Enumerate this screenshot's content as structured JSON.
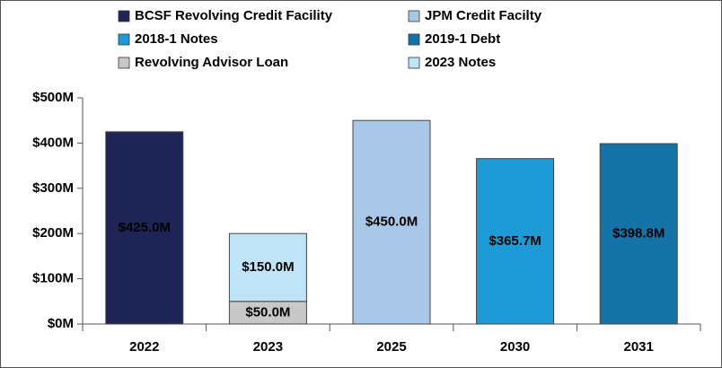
{
  "chart_data": {
    "type": "stacked-bar",
    "categories": [
      "2022",
      "2023",
      "2025",
      "2030",
      "2031"
    ],
    "series": [
      {
        "name": "BCSF Revolving Credit Facility",
        "color": "#1f2456",
        "values": [
          425,
          null,
          null,
          null,
          null
        ],
        "value_labels": [
          "$425.0M",
          null,
          null,
          null,
          null
        ]
      },
      {
        "name": "JPM Credit Facilty",
        "color": "#a9c8e8",
        "values": [
          null,
          null,
          450,
          null,
          null
        ],
        "value_labels": [
          null,
          null,
          "$450.0M",
          null,
          null
        ]
      },
      {
        "name": "2018-1 Notes",
        "color": "#1e9bd7",
        "values": [
          null,
          null,
          null,
          365.7,
          null
        ],
        "value_labels": [
          null,
          null,
          null,
          "$365.7M",
          null
        ]
      },
      {
        "name": "2019-1 Debt",
        "color": "#1673a8",
        "values": [
          null,
          null,
          null,
          null,
          398.8
        ],
        "value_labels": [
          null,
          null,
          null,
          null,
          "$398.8M"
        ]
      },
      {
        "name": "Revolving Advisor Loan",
        "color": "#c8c8c8",
        "values": [
          null,
          50,
          null,
          null,
          null
        ],
        "value_labels": [
          null,
          "$50.0M",
          null,
          null,
          null
        ]
      },
      {
        "name": "2023 Notes",
        "color": "#bfe3f7",
        "values": [
          null,
          150,
          null,
          null,
          null
        ],
        "value_labels": [
          null,
          "$150.0M",
          null,
          null,
          null
        ]
      }
    ],
    "ylim": [
      0,
      500
    ],
    "yticks": [
      {
        "value": 0,
        "label": "$0M"
      },
      {
        "value": 100,
        "label": "$100M"
      },
      {
        "value": 200,
        "label": "$200M"
      },
      {
        "value": 300,
        "label": "$300M"
      },
      {
        "value": 400,
        "label": "$400M"
      },
      {
        "value": 500,
        "label": "$500M"
      }
    ],
    "grid": false
  }
}
